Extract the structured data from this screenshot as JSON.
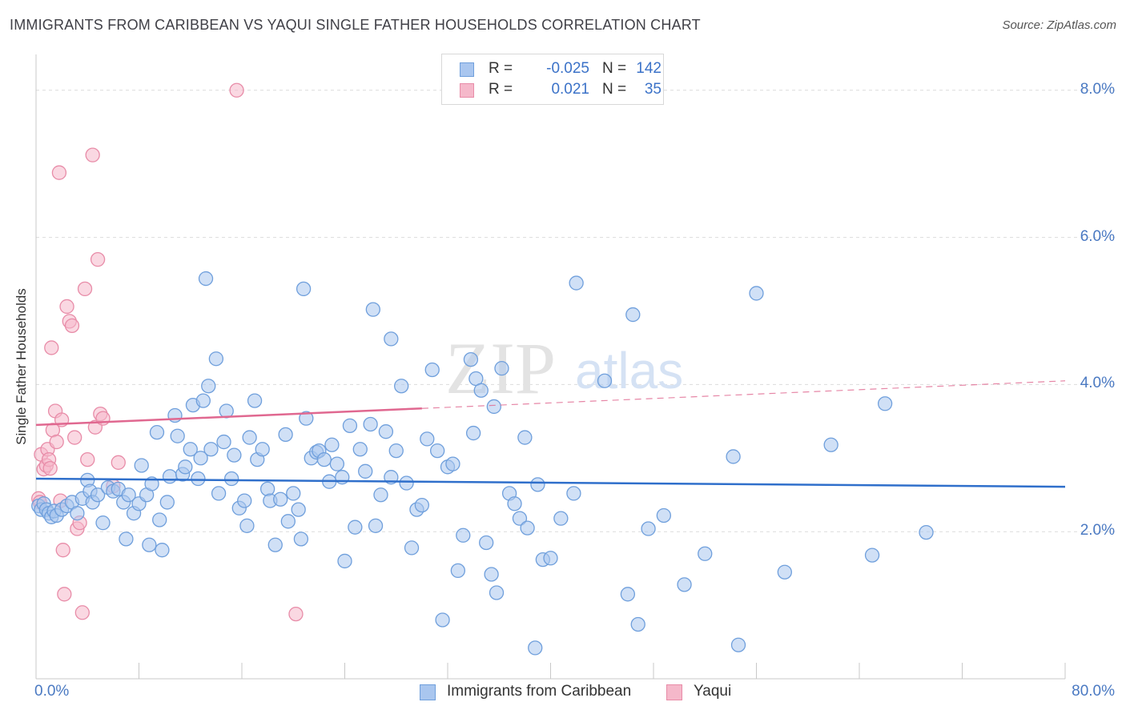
{
  "title": "IMMIGRANTS FROM CARIBBEAN VS YAQUI SINGLE FATHER HOUSEHOLDS CORRELATION CHART",
  "source": "Source: ZipAtlas.com",
  "watermark": {
    "zip": "ZIP",
    "atlas": "atlas"
  },
  "colors": {
    "blue_fill": "#a9c6ef",
    "blue_stroke": "#6f9fdc",
    "blue_line": "#2f6fcb",
    "pink_fill": "#f5b8ca",
    "pink_stroke": "#e88ca8",
    "pink_line": "#e06890",
    "tick_text": "#4a79c2",
    "grid": "#dcdcdc"
  },
  "legend": {
    "series": [
      {
        "r_label": "R =",
        "r_value": "-0.025",
        "n_label": "N =",
        "n_value": "142"
      },
      {
        "r_label": "R =",
        "r_value": "0.021",
        "n_label": "N =",
        "n_value": "35"
      }
    ],
    "bottom": [
      "Immigrants from Caribbean",
      "Yaqui"
    ]
  },
  "chart_data": {
    "type": "scatter",
    "title": "IMMIGRANTS FROM CARIBBEAN VS YAQUI SINGLE FATHER HOUSEHOLDS CORRELATION CHART",
    "xlabel": "",
    "ylabel": "Single Father Households",
    "xlim": [
      0,
      80
    ],
    "ylim": [
      0,
      8.4
    ],
    "x_tick_labels": [
      "0.0%",
      "80.0%"
    ],
    "y_ticks": [
      2,
      4,
      6,
      8
    ],
    "y_tick_labels": [
      "2.0%",
      "4.0%",
      "6.0%",
      "8.0%"
    ],
    "grid": true,
    "series": [
      {
        "name": "Immigrants from Caribbean",
        "trend": {
          "x": [
            0,
            80
          ],
          "y": [
            2.72,
            2.61
          ],
          "dashed_from": null
        },
        "points": [
          [
            0.2,
            2.35
          ],
          [
            0.4,
            2.3
          ],
          [
            0.6,
            2.38
          ],
          [
            0.8,
            2.3
          ],
          [
            1.0,
            2.25
          ],
          [
            1.2,
            2.2
          ],
          [
            1.4,
            2.28
          ],
          [
            1.6,
            2.22
          ],
          [
            2.0,
            2.3
          ],
          [
            2.4,
            2.35
          ],
          [
            2.8,
            2.4
          ],
          [
            3.2,
            2.25
          ],
          [
            3.6,
            2.45
          ],
          [
            4.0,
            2.7
          ],
          [
            4.2,
            2.55
          ],
          [
            4.4,
            2.4
          ],
          [
            4.8,
            2.5
          ],
          [
            5.2,
            2.12
          ],
          [
            5.6,
            2.6
          ],
          [
            6.0,
            2.55
          ],
          [
            6.4,
            2.58
          ],
          [
            6.8,
            2.4
          ],
          [
            7.0,
            1.9
          ],
          [
            7.2,
            2.5
          ],
          [
            7.6,
            2.25
          ],
          [
            8.0,
            2.38
          ],
          [
            8.2,
            2.9
          ],
          [
            8.6,
            2.5
          ],
          [
            8.8,
            1.82
          ],
          [
            9.0,
            2.65
          ],
          [
            9.4,
            3.35
          ],
          [
            9.6,
            2.16
          ],
          [
            9.8,
            1.75
          ],
          [
            10.2,
            2.4
          ],
          [
            10.4,
            2.75
          ],
          [
            10.8,
            3.58
          ],
          [
            11.0,
            3.3
          ],
          [
            11.4,
            2.78
          ],
          [
            11.6,
            2.88
          ],
          [
            12.0,
            3.12
          ],
          [
            12.2,
            3.72
          ],
          [
            12.6,
            2.72
          ],
          [
            12.8,
            3.0
          ],
          [
            13.0,
            3.78
          ],
          [
            13.4,
            3.98
          ],
          [
            13.6,
            3.12
          ],
          [
            14.0,
            4.35
          ],
          [
            14.2,
            2.52
          ],
          [
            14.6,
            3.22
          ],
          [
            14.8,
            3.64
          ],
          [
            15.2,
            2.72
          ],
          [
            15.4,
            3.04
          ],
          [
            15.8,
            2.32
          ],
          [
            16.2,
            2.42
          ],
          [
            16.4,
            2.08
          ],
          [
            16.6,
            3.28
          ],
          [
            17.0,
            3.78
          ],
          [
            17.2,
            2.98
          ],
          [
            17.6,
            3.12
          ],
          [
            18.0,
            2.58
          ],
          [
            18.2,
            2.42
          ],
          [
            18.6,
            1.82
          ],
          [
            19.0,
            2.44
          ],
          [
            19.4,
            3.32
          ],
          [
            19.6,
            2.14
          ],
          [
            20.0,
            2.52
          ],
          [
            20.4,
            2.3
          ],
          [
            20.6,
            1.9
          ],
          [
            21.0,
            3.54
          ],
          [
            21.4,
            3.0
          ],
          [
            21.8,
            3.08
          ],
          [
            22.0,
            3.1
          ],
          [
            22.4,
            2.98
          ],
          [
            22.8,
            2.68
          ],
          [
            23.0,
            3.18
          ],
          [
            23.4,
            2.92
          ],
          [
            23.8,
            2.74
          ],
          [
            24.0,
            1.6
          ],
          [
            24.4,
            3.44
          ],
          [
            24.8,
            2.06
          ],
          [
            25.2,
            3.12
          ],
          [
            25.6,
            2.82
          ],
          [
            26.0,
            3.46
          ],
          [
            26.4,
            2.08
          ],
          [
            26.8,
            2.5
          ],
          [
            27.2,
            3.36
          ],
          [
            27.6,
            2.74
          ],
          [
            28.0,
            3.1
          ],
          [
            28.4,
            3.98
          ],
          [
            28.8,
            2.66
          ],
          [
            29.2,
            1.78
          ],
          [
            29.6,
            2.3
          ],
          [
            30.0,
            2.36
          ],
          [
            30.4,
            3.26
          ],
          [
            30.8,
            4.2
          ],
          [
            31.2,
            3.1
          ],
          [
            31.6,
            0.8
          ],
          [
            32.0,
            2.88
          ],
          [
            32.4,
            2.92
          ],
          [
            32.8,
            1.47
          ],
          [
            33.2,
            1.95
          ],
          [
            33.8,
            4.34
          ],
          [
            34.0,
            3.34
          ],
          [
            34.2,
            4.08
          ],
          [
            34.6,
            3.92
          ],
          [
            35.0,
            1.85
          ],
          [
            35.4,
            1.42
          ],
          [
            35.6,
            3.7
          ],
          [
            35.8,
            1.17
          ],
          [
            36.2,
            4.22
          ],
          [
            36.8,
            2.52
          ],
          [
            37.2,
            2.38
          ],
          [
            37.6,
            2.18
          ],
          [
            38.0,
            3.28
          ],
          [
            38.2,
            2.05
          ],
          [
            38.8,
            0.42
          ],
          [
            39.0,
            2.64
          ],
          [
            39.4,
            1.62
          ],
          [
            40.0,
            1.64
          ],
          [
            40.8,
            2.18
          ],
          [
            41.8,
            2.52
          ],
          [
            42.0,
            5.38
          ],
          [
            44.2,
            4.05
          ],
          [
            46.0,
            1.15
          ],
          [
            46.4,
            4.95
          ],
          [
            46.8,
            0.74
          ],
          [
            47.6,
            2.04
          ],
          [
            48.8,
            2.22
          ],
          [
            50.4,
            1.28
          ],
          [
            52.0,
            1.7
          ],
          [
            54.2,
            3.02
          ],
          [
            54.6,
            0.46
          ],
          [
            56.0,
            5.24
          ],
          [
            58.2,
            1.45
          ],
          [
            61.8,
            3.18
          ],
          [
            65.0,
            1.68
          ],
          [
            66.0,
            3.74
          ],
          [
            69.2,
            1.99
          ],
          [
            26.2,
            5.02
          ],
          [
            27.6,
            4.62
          ],
          [
            20.8,
            5.3
          ],
          [
            13.2,
            5.44
          ]
        ]
      },
      {
        "name": "Yaqui",
        "trend": {
          "x": [
            0,
            80
          ],
          "y": [
            3.45,
            4.05
          ],
          "dashed_from": 30
        },
        "points": [
          [
            0.2,
            2.45
          ],
          [
            0.3,
            2.4
          ],
          [
            0.4,
            3.05
          ],
          [
            0.6,
            2.85
          ],
          [
            0.8,
            2.9
          ],
          [
            0.9,
            3.12
          ],
          [
            1.0,
            2.98
          ],
          [
            1.1,
            2.86
          ],
          [
            1.2,
            4.5
          ],
          [
            1.3,
            3.38
          ],
          [
            1.5,
            3.64
          ],
          [
            1.6,
            3.22
          ],
          [
            1.8,
            6.88
          ],
          [
            1.9,
            2.42
          ],
          [
            2.0,
            3.52
          ],
          [
            2.1,
            1.75
          ],
          [
            2.2,
            1.15
          ],
          [
            2.4,
            5.06
          ],
          [
            2.6,
            4.86
          ],
          [
            2.8,
            4.8
          ],
          [
            3.0,
            3.28
          ],
          [
            3.2,
            2.04
          ],
          [
            3.4,
            2.12
          ],
          [
            3.6,
            0.9
          ],
          [
            3.8,
            5.3
          ],
          [
            4.0,
            2.98
          ],
          [
            4.4,
            7.12
          ],
          [
            4.6,
            3.42
          ],
          [
            4.8,
            5.7
          ],
          [
            5.0,
            3.6
          ],
          [
            5.2,
            3.54
          ],
          [
            6.0,
            2.62
          ],
          [
            6.4,
            2.94
          ],
          [
            20.2,
            0.88
          ],
          [
            15.6,
            8.0
          ]
        ]
      }
    ]
  }
}
